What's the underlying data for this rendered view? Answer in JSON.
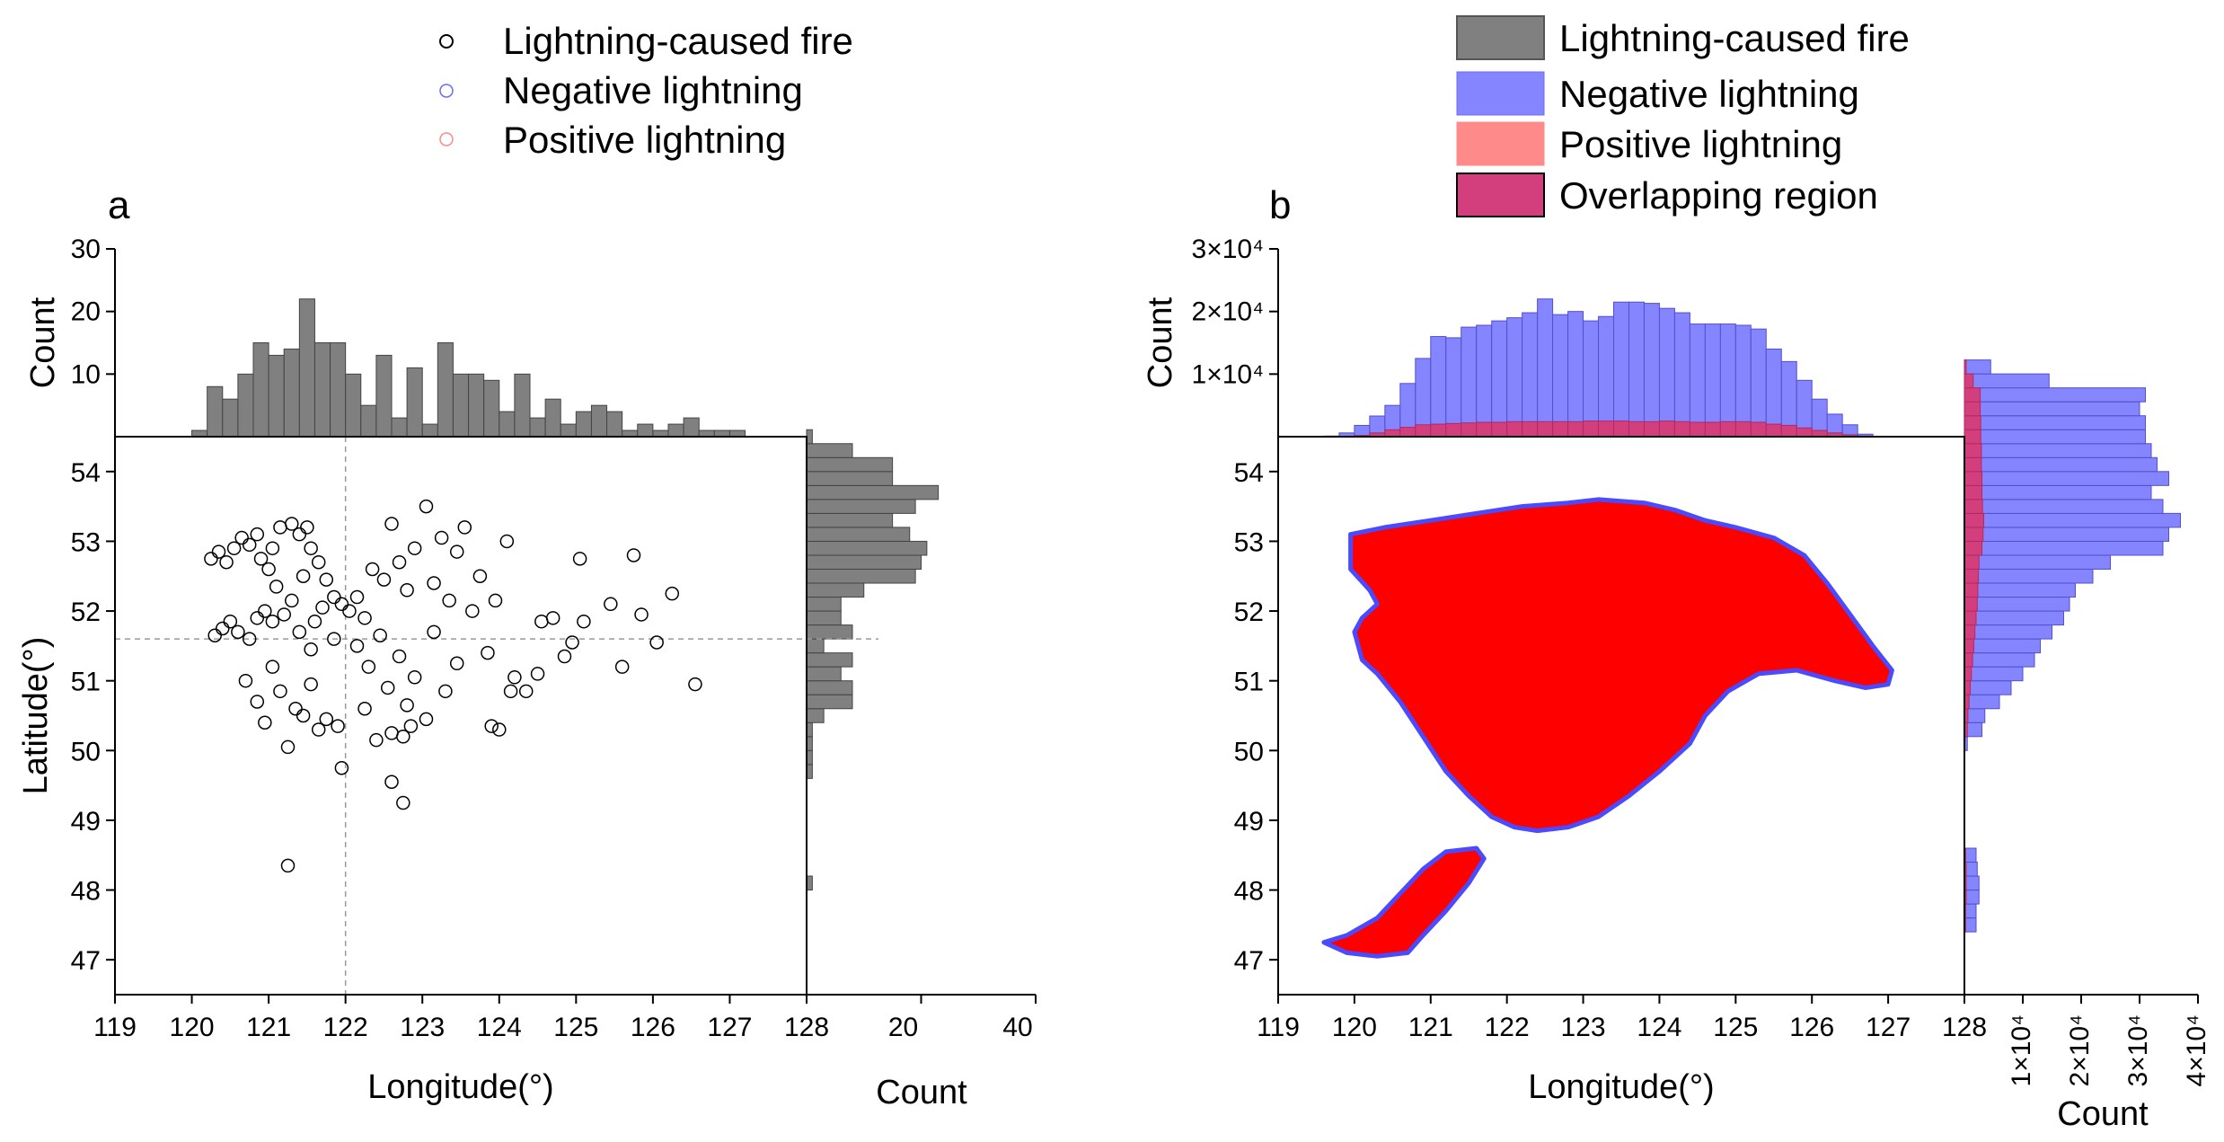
{
  "chart_data": [
    {
      "panel": "a",
      "type": "scatter",
      "title": "",
      "xlabel": "Longitude(°)",
      "ylabel": "Latitude(°)",
      "xlim": [
        119,
        128
      ],
      "ylim": [
        46.5,
        54.5
      ],
      "xticks": [
        "119",
        "120",
        "121",
        "122",
        "123",
        "124",
        "125",
        "126",
        "127",
        "128"
      ],
      "yticks": [
        "47",
        "48",
        "49",
        "50",
        "51",
        "52",
        "53",
        "54"
      ],
      "reference_lines": {
        "x": 122,
        "y": 51.6
      },
      "legend": [
        "Lightning-caused fire",
        "Negative lightning",
        "Positive lightning"
      ],
      "series": [
        {
          "name": "Lightning-caused fire",
          "color": "#000000",
          "points": [
            [
              120.25,
              52.75
            ],
            [
              120.35,
              52.85
            ],
            [
              120.45,
              52.7
            ],
            [
              120.55,
              52.9
            ],
            [
              120.65,
              53.05
            ],
            [
              120.75,
              52.95
            ],
            [
              120.85,
              53.1
            ],
            [
              120.9,
              52.75
            ],
            [
              121.0,
              52.6
            ],
            [
              121.05,
              52.9
            ],
            [
              121.15,
              53.2
            ],
            [
              121.3,
              53.25
            ],
            [
              121.4,
              53.1
            ],
            [
              121.5,
              53.2
            ],
            [
              121.55,
              52.9
            ],
            [
              121.65,
              52.7
            ],
            [
              121.75,
              52.45
            ],
            [
              121.85,
              52.2
            ],
            [
              120.3,
              51.65
            ],
            [
              120.4,
              51.75
            ],
            [
              120.5,
              51.85
            ],
            [
              120.6,
              51.7
            ],
            [
              120.75,
              51.6
            ],
            [
              120.85,
              51.9
            ],
            [
              120.95,
              52.0
            ],
            [
              121.05,
              51.85
            ],
            [
              121.1,
              52.35
            ],
            [
              121.2,
              51.95
            ],
            [
              121.3,
              52.15
            ],
            [
              121.4,
              51.7
            ],
            [
              121.45,
              52.5
            ],
            [
              121.55,
              51.45
            ],
            [
              121.6,
              51.85
            ],
            [
              121.7,
              52.05
            ],
            [
              121.85,
              51.6
            ],
            [
              121.95,
              52.1
            ],
            [
              120.7,
              51.0
            ],
            [
              120.85,
              50.7
            ],
            [
              120.95,
              50.4
            ],
            [
              121.05,
              51.2
            ],
            [
              121.15,
              50.85
            ],
            [
              121.25,
              50.05
            ],
            [
              121.35,
              50.6
            ],
            [
              121.45,
              50.5
            ],
            [
              121.55,
              50.95
            ],
            [
              121.65,
              50.3
            ],
            [
              121.75,
              50.45
            ],
            [
              121.9,
              50.35
            ],
            [
              121.95,
              49.75
            ],
            [
              121.25,
              48.35
            ],
            [
              122.05,
              52.0
            ],
            [
              122.15,
              52.2
            ],
            [
              122.25,
              51.9
            ],
            [
              122.35,
              52.6
            ],
            [
              122.5,
              52.45
            ],
            [
              122.6,
              53.25
            ],
            [
              122.7,
              52.7
            ],
            [
              122.8,
              52.3
            ],
            [
              122.9,
              52.9
            ],
            [
              123.05,
              53.5
            ],
            [
              123.15,
              52.4
            ],
            [
              123.25,
              53.05
            ],
            [
              123.35,
              52.15
            ],
            [
              123.45,
              52.85
            ],
            [
              123.55,
              53.2
            ],
            [
              123.65,
              52.0
            ],
            [
              123.75,
              52.5
            ],
            [
              123.85,
              51.4
            ],
            [
              123.95,
              52.15
            ],
            [
              124.1,
              53.0
            ],
            [
              122.15,
              51.5
            ],
            [
              122.3,
              51.2
            ],
            [
              122.45,
              51.65
            ],
            [
              122.55,
              50.9
            ],
            [
              122.7,
              51.35
            ],
            [
              122.8,
              50.65
            ],
            [
              122.9,
              51.05
            ],
            [
              123.05,
              50.45
            ],
            [
              123.15,
              51.7
            ],
            [
              123.3,
              50.85
            ],
            [
              123.45,
              51.25
            ],
            [
              122.25,
              50.6
            ],
            [
              122.4,
              50.15
            ],
            [
              122.6,
              50.25
            ],
            [
              122.75,
              50.2
            ],
            [
              122.85,
              50.35
            ],
            [
              122.6,
              49.55
            ],
            [
              122.75,
              49.25
            ],
            [
              124.2,
              51.05
            ],
            [
              124.35,
              50.85
            ],
            [
              124.5,
              51.1
            ],
            [
              124.55,
              51.85
            ],
            [
              124.7,
              51.9
            ],
            [
              124.85,
              51.35
            ],
            [
              124.95,
              51.55
            ],
            [
              125.05,
              52.75
            ],
            [
              125.1,
              51.85
            ],
            [
              125.45,
              52.1
            ],
            [
              125.6,
              51.2
            ],
            [
              125.75,
              52.8
            ],
            [
              125.85,
              51.95
            ],
            [
              126.05,
              51.55
            ],
            [
              126.25,
              52.25
            ],
            [
              126.55,
              50.95
            ],
            [
              124.0,
              50.3
            ],
            [
              124.15,
              50.85
            ],
            [
              123.9,
              50.35
            ]
          ]
        },
        {
          "name": "Negative lightning",
          "color": "#6b6bff",
          "points": []
        },
        {
          "name": "Positive lightning",
          "color": "#ff8a8a",
          "points": []
        }
      ],
      "top_histogram": {
        "ylabel": "Count",
        "yticks": [
          "10",
          "20",
          "30"
        ],
        "ylim": [
          0,
          30
        ],
        "bin_start": 120.0,
        "bin_width": 0.2,
        "values": [
          1,
          8,
          6,
          10,
          15,
          13,
          14,
          22,
          15,
          15,
          10,
          5,
          13,
          3,
          11,
          2,
          15,
          10,
          10,
          9,
          4,
          10,
          3,
          6,
          2,
          4,
          5,
          4,
          1,
          2,
          1,
          2,
          3,
          1,
          1,
          1
        ]
      },
      "right_histogram": {
        "xlabel": "Count",
        "xticks": [
          "20",
          "40"
        ],
        "xlim": [
          0,
          40
        ],
        "bin_start": 48.0,
        "bin_width": 0.2,
        "values": [
          1,
          0,
          0,
          0,
          0,
          0,
          0,
          0,
          1,
          1,
          1,
          1,
          3,
          8,
          8,
          6,
          8,
          3,
          8,
          6,
          6,
          10,
          19,
          20,
          21,
          18,
          15,
          19,
          23,
          15,
          15,
          8,
          1,
          0,
          0,
          0,
          0
        ]
      }
    },
    {
      "panel": "b",
      "type": "scatter",
      "title": "",
      "xlabel": "Longitude(°)",
      "ylabel": "",
      "xlim": [
        119,
        128
      ],
      "ylim": [
        46.5,
        54.5
      ],
      "xticks": [
        "119",
        "120",
        "121",
        "122",
        "123",
        "124",
        "125",
        "126",
        "127",
        "128"
      ],
      "yticks": [
        "47",
        "48",
        "49",
        "50",
        "51",
        "52",
        "53",
        "54"
      ],
      "legend": [
        "Lightning-caused fire",
        "Negative lightning",
        "Positive lightning",
        "Overlapping region"
      ],
      "legend_colors": {
        "Lightning-caused fire": "#808080",
        "Negative lightning": "#8585ff",
        "Positive lightning": "#ff8a8a",
        "Overlapping region": "#d33f7c"
      },
      "regions": {
        "main": [
          [
            119.95,
            53.1
          ],
          [
            120.4,
            53.2
          ],
          [
            121.0,
            53.3
          ],
          [
            121.6,
            53.4
          ],
          [
            122.2,
            53.5
          ],
          [
            122.8,
            53.55
          ],
          [
            123.2,
            53.6
          ],
          [
            123.8,
            53.55
          ],
          [
            124.2,
            53.45
          ],
          [
            124.6,
            53.3
          ],
          [
            125.0,
            53.2
          ],
          [
            125.5,
            53.05
          ],
          [
            125.9,
            52.8
          ],
          [
            126.2,
            52.4
          ],
          [
            126.5,
            51.95
          ],
          [
            126.8,
            51.5
          ],
          [
            127.05,
            51.15
          ],
          [
            127.0,
            50.95
          ],
          [
            126.7,
            50.9
          ],
          [
            126.3,
            51.0
          ],
          [
            125.8,
            51.15
          ],
          [
            125.3,
            51.1
          ],
          [
            124.9,
            50.85
          ],
          [
            124.6,
            50.5
          ],
          [
            124.4,
            50.1
          ],
          [
            124.0,
            49.7
          ],
          [
            123.6,
            49.35
          ],
          [
            123.2,
            49.05
          ],
          [
            122.8,
            48.9
          ],
          [
            122.4,
            48.85
          ],
          [
            122.1,
            48.9
          ],
          [
            121.8,
            49.05
          ],
          [
            121.5,
            49.35
          ],
          [
            121.2,
            49.7
          ],
          [
            120.9,
            50.2
          ],
          [
            120.6,
            50.7
          ],
          [
            120.3,
            51.1
          ],
          [
            120.1,
            51.3
          ],
          [
            120.0,
            51.7
          ],
          [
            120.1,
            51.9
          ],
          [
            120.3,
            52.1
          ],
          [
            120.2,
            52.3
          ],
          [
            119.95,
            52.6
          ],
          [
            119.95,
            52.85
          ]
        ],
        "small": [
          [
            119.6,
            47.25
          ],
          [
            119.9,
            47.35
          ],
          [
            120.3,
            47.6
          ],
          [
            120.6,
            47.95
          ],
          [
            120.9,
            48.3
          ],
          [
            121.2,
            48.55
          ],
          [
            121.6,
            48.6
          ],
          [
            121.7,
            48.45
          ],
          [
            121.5,
            48.1
          ],
          [
            121.2,
            47.7
          ],
          [
            120.9,
            47.35
          ],
          [
            120.7,
            47.1
          ],
          [
            120.3,
            47.05
          ],
          [
            119.9,
            47.1
          ]
        ]
      },
      "top_histogram": {
        "ylabel": "Count",
        "yticks": [
          "1×10⁴",
          "2×10⁴",
          "3×10⁴"
        ],
        "ylim": [
          0,
          30000
        ],
        "bin_start": 119.6,
        "bin_width": 0.2,
        "negative": [
          100,
          600,
          1800,
          3300,
          5000,
          8500,
          12500,
          16000,
          15800,
          17500,
          17800,
          18500,
          19000,
          19800,
          22000,
          19500,
          20000,
          18500,
          19200,
          21500,
          21500,
          21300,
          20500,
          19800,
          18000,
          18000,
          18000,
          17800,
          17200,
          14000,
          12000,
          9000,
          6000,
          3600,
          1900,
          400,
          0
        ],
        "positive": [
          0,
          0,
          200,
          600,
          1100,
          1500,
          1900,
          2000,
          2100,
          2200,
          2300,
          2300,
          2400,
          2400,
          2400,
          2400,
          2400,
          2500,
          2500,
          2500,
          2400,
          2400,
          2500,
          2400,
          2300,
          2300,
          2400,
          2400,
          2300,
          2000,
          1800,
          1400,
          1000,
          600,
          300,
          100,
          0
        ]
      },
      "right_histogram": {
        "xlabel": "Count",
        "xticks": [
          "1×10⁴",
          "2×10⁴",
          "3×10⁴",
          "4×10⁴"
        ],
        "xlim": [
          0,
          40000
        ],
        "bin_start": 47.0,
        "bin_width": 0.2,
        "negative": [
          0,
          0,
          2000,
          2000,
          2500,
          2500,
          2200,
          2000,
          0,
          0,
          0,
          0,
          0,
          0,
          0,
          500,
          3000,
          3500,
          6000,
          8000,
          10000,
          12000,
          13000,
          15000,
          17000,
          18000,
          19000,
          22000,
          25000,
          34000,
          35000,
          37000,
          34000,
          32000,
          35000,
          33000,
          32000,
          31000,
          31000,
          30000,
          31000,
          14500,
          4500
        ],
        "positive": [
          0,
          0,
          200,
          200,
          300,
          300,
          300,
          200,
          0,
          0,
          0,
          0,
          0,
          0,
          0,
          100,
          500,
          600,
          800,
          1000,
          1200,
          1400,
          1600,
          1800,
          2000,
          2200,
          2300,
          2400,
          2500,
          3000,
          3200,
          3300,
          3100,
          3000,
          3000,
          2900,
          2900,
          2800,
          2800,
          2700,
          2700,
          1500,
          300
        ]
      }
    }
  ],
  "panel_labels": {
    "a": "a",
    "b": "b"
  },
  "legend_a": {
    "items": [
      "Lightning-caused fire",
      "Negative lightning",
      "Positive lightning"
    ]
  },
  "legend_b": {
    "items": [
      "Lightning-caused fire",
      "Negative lightning",
      "Positive lightning",
      "Overlapping region"
    ]
  }
}
